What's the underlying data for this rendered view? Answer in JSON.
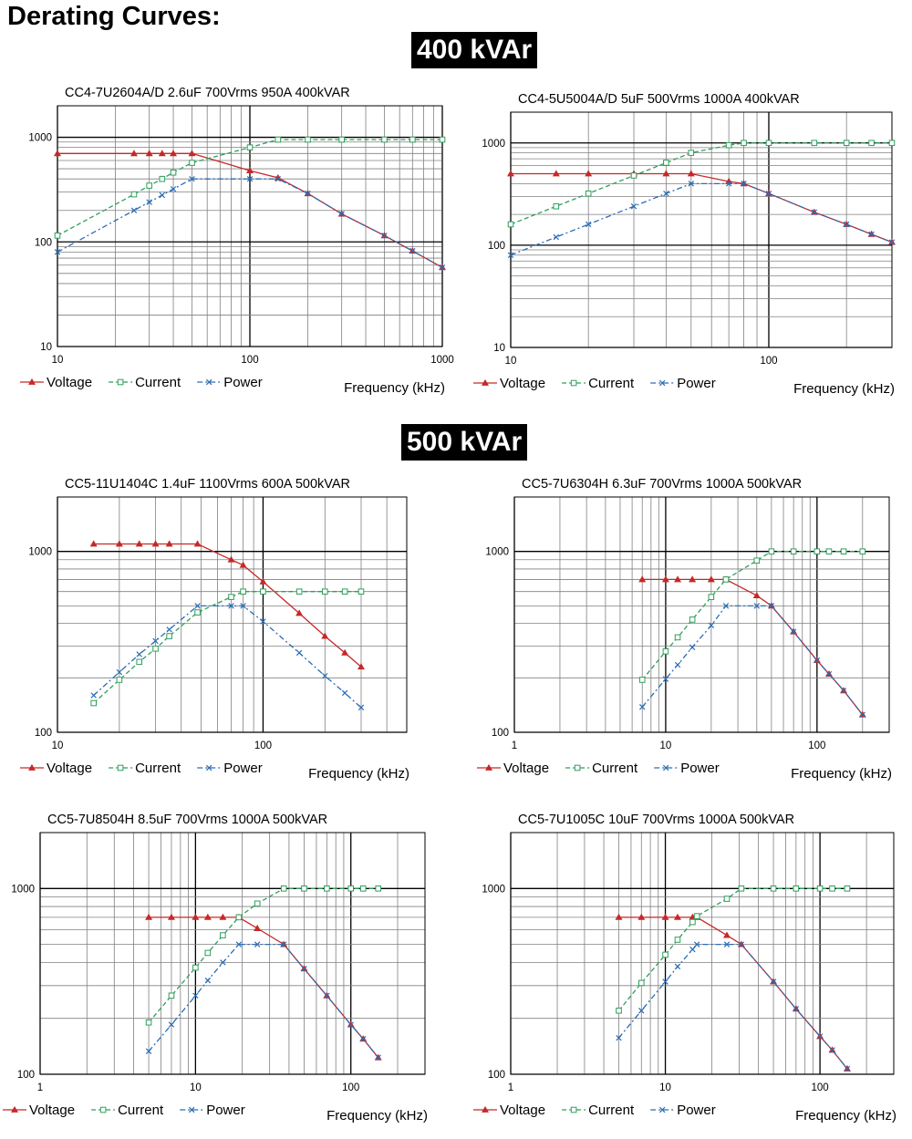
{
  "page": {
    "title": "Derating Curves:"
  },
  "sections": [
    {
      "title": "400 kVAr"
    },
    {
      "title": "500 kVAr"
    }
  ],
  "colors": {
    "voltage": "#c62828",
    "current": "#2e9e5b",
    "power": "#2a6db5",
    "grid_major": "#000000",
    "grid_minor": "#808080"
  },
  "legend": {
    "voltage": "Voltage",
    "current": "Current",
    "power": "Power"
  },
  "chart_data": [
    {
      "type": "line",
      "title": "CC4-7U2604A/D  2.6uF 700Vrms 950A 400kVAR",
      "xlabel": "Frequency (kHz)",
      "x_scale": "log",
      "y_scale": "log",
      "xlim": [
        10,
        1000
      ],
      "ylim": [
        10,
        2000
      ],
      "x_ticks": [
        10,
        100,
        1000
      ],
      "y_ticks": [
        10,
        100,
        1000
      ],
      "series": [
        {
          "name": "Voltage",
          "x": [
            10,
            25,
            30,
            35,
            40,
            50,
            100,
            140,
            200,
            300,
            500,
            700,
            1000
          ],
          "y": [
            700,
            700,
            700,
            700,
            700,
            700,
            480,
            410,
            290,
            185,
            115,
            82,
            57
          ]
        },
        {
          "name": "Current",
          "x": [
            10,
            25,
            30,
            35,
            40,
            50,
            100,
            140,
            200,
            300,
            500,
            700,
            1000
          ],
          "y": [
            115,
            285,
            345,
            400,
            460,
            570,
            800,
            950,
            950,
            950,
            950,
            950,
            950
          ]
        },
        {
          "name": "Power",
          "x": [
            10,
            25,
            30,
            35,
            40,
            50,
            100,
            140,
            200,
            300,
            500,
            700,
            1000
          ],
          "y": [
            80,
            200,
            240,
            280,
            320,
            400,
            400,
            400,
            290,
            185,
            115,
            82,
            57
          ]
        }
      ]
    },
    {
      "type": "line",
      "title": "CC4-5U5004A/D  5uF 500Vrms 1000A 400kVAR",
      "xlabel": "Frequency (kHz)",
      "x_scale": "log",
      "y_scale": "log",
      "xlim": [
        10,
        300
      ],
      "ylim": [
        10,
        2000
      ],
      "x_ticks": [
        10,
        100
      ],
      "y_ticks": [
        10,
        100,
        1000
      ],
      "series": [
        {
          "name": "Voltage",
          "x": [
            10,
            15,
            20,
            30,
            40,
            50,
            70,
            80,
            100,
            150,
            200,
            250,
            300
          ],
          "y": [
            500,
            500,
            500,
            500,
            500,
            500,
            420,
            400,
            320,
            210,
            160,
            128,
            107
          ]
        },
        {
          "name": "Current",
          "x": [
            10,
            15,
            20,
            30,
            40,
            50,
            70,
            80,
            100,
            150,
            200,
            250,
            300
          ],
          "y": [
            160,
            240,
            320,
            480,
            640,
            800,
            950,
            1000,
            1000,
            1000,
            1000,
            1000,
            1000
          ]
        },
        {
          "name": "Power",
          "x": [
            10,
            15,
            20,
            30,
            40,
            50,
            70,
            80,
            100,
            150,
            200,
            250,
            300
          ],
          "y": [
            80,
            120,
            160,
            240,
            320,
            400,
            400,
            400,
            320,
            210,
            160,
            128,
            107
          ]
        }
      ]
    },
    {
      "type": "line",
      "title": "CC5-11U1404C  1.4uF 1100Vrms 600A 500kVAR",
      "xlabel": "Frequency (kHz)",
      "x_scale": "log",
      "y_scale": "log",
      "xlim": [
        10,
        500
      ],
      "ylim": [
        100,
        2000
      ],
      "x_ticks": [
        10,
        100
      ],
      "y_ticks": [
        100,
        1000
      ],
      "series": [
        {
          "name": "Voltage",
          "x": [
            15,
            20,
            25,
            30,
            35,
            48,
            70,
            80,
            100,
            150,
            200,
            250,
            300
          ],
          "y": [
            1100,
            1100,
            1100,
            1100,
            1100,
            1100,
            900,
            840,
            680,
            455,
            340,
            275,
            230
          ]
        },
        {
          "name": "Current",
          "x": [
            15,
            20,
            25,
            30,
            35,
            48,
            70,
            80,
            100,
            150,
            200,
            250,
            300
          ],
          "y": [
            145,
            195,
            245,
            290,
            340,
            460,
            560,
            600,
            600,
            600,
            600,
            600,
            600
          ]
        },
        {
          "name": "Power",
          "x": [
            15,
            20,
            25,
            30,
            35,
            48,
            70,
            80,
            100,
            150,
            200,
            250,
            300
          ],
          "y": [
            160,
            215,
            270,
            320,
            370,
            500,
            500,
            500,
            410,
            275,
            205,
            165,
            137
          ]
        }
      ]
    },
    {
      "type": "line",
      "title": "CC5-7U6304H  6.3uF 700Vrms 1000A 500kVAR",
      "xlabel": "Frequency (kHz)",
      "x_scale": "log",
      "y_scale": "log",
      "xlim": [
        1,
        300
      ],
      "ylim": [
        100,
        2000
      ],
      "x_ticks": [
        1,
        10,
        100
      ],
      "y_ticks": [
        100,
        1000
      ],
      "series": [
        {
          "name": "Voltage",
          "x": [
            7,
            10,
            12,
            15,
            20,
            25,
            40,
            50,
            70,
            100,
            120,
            150,
            200
          ],
          "y": [
            700,
            700,
            700,
            700,
            700,
            700,
            570,
            500,
            360,
            250,
            210,
            170,
            125
          ]
        },
        {
          "name": "Current",
          "x": [
            7,
            10,
            12,
            15,
            20,
            25,
            40,
            50,
            70,
            100,
            120,
            150,
            200
          ],
          "y": [
            195,
            280,
            335,
            420,
            560,
            700,
            890,
            1000,
            1000,
            1000,
            1000,
            1000,
            1000
          ]
        },
        {
          "name": "Power",
          "x": [
            7,
            10,
            12,
            15,
            20,
            25,
            40,
            50,
            70,
            100,
            120,
            150,
            200
          ],
          "y": [
            138,
            197,
            236,
            295,
            390,
            500,
            500,
            500,
            360,
            250,
            210,
            170,
            125
          ]
        }
      ]
    },
    {
      "type": "line",
      "title": "CC5-7U8504H  8.5uF 700Vrms 1000A 500kVAR",
      "xlabel": "Frequency (kHz)",
      "x_scale": "log",
      "y_scale": "log",
      "xlim": [
        1,
        300
      ],
      "ylim": [
        100,
        2000
      ],
      "x_ticks": [
        1,
        10,
        100
      ],
      "y_ticks": [
        100,
        1000
      ],
      "series": [
        {
          "name": "Voltage",
          "x": [
            5,
            7,
            10,
            12,
            15,
            19,
            25,
            37,
            50,
            70,
            100,
            120,
            150
          ],
          "y": [
            700,
            700,
            700,
            700,
            700,
            700,
            610,
            500,
            370,
            265,
            185,
            155,
            123
          ]
        },
        {
          "name": "Current",
          "x": [
            5,
            7,
            10,
            12,
            15,
            19,
            25,
            37,
            50,
            70,
            100,
            120,
            150
          ],
          "y": [
            190,
            265,
            375,
            450,
            560,
            700,
            830,
            1000,
            1000,
            1000,
            1000,
            1000,
            1000
          ]
        },
        {
          "name": "Power",
          "x": [
            5,
            7,
            10,
            12,
            15,
            19,
            25,
            37,
            50,
            70,
            100,
            120,
            150
          ],
          "y": [
            133,
            185,
            265,
            320,
            400,
            500,
            500,
            500,
            370,
            265,
            185,
            155,
            123
          ]
        }
      ]
    },
    {
      "type": "line",
      "title": "CC5-7U1005C  10uF 700Vrms 1000A 500kVAR",
      "xlabel": "Frequency (kHz)",
      "x_scale": "log",
      "y_scale": "log",
      "xlim": [
        1,
        300
      ],
      "ylim": [
        100,
        2000
      ],
      "x_ticks": [
        1,
        10,
        100
      ],
      "y_ticks": [
        100,
        1000
      ],
      "series": [
        {
          "name": "Voltage",
          "x": [
            5,
            7,
            10,
            12,
            15,
            16,
            25,
            31,
            50,
            70,
            100,
            120,
            150
          ],
          "y": [
            700,
            700,
            700,
            700,
            700,
            700,
            560,
            500,
            315,
            225,
            160,
            135,
            107
          ]
        },
        {
          "name": "Current",
          "x": [
            5,
            7,
            10,
            12,
            15,
            16,
            25,
            31,
            50,
            70,
            100,
            120,
            150
          ],
          "y": [
            220,
            310,
            440,
            530,
            660,
            710,
            880,
            1000,
            1000,
            1000,
            1000,
            1000,
            1000
          ]
        },
        {
          "name": "Power",
          "x": [
            5,
            7,
            10,
            12,
            15,
            16,
            25,
            31,
            50,
            70,
            100,
            120,
            150
          ],
          "y": [
            157,
            220,
            315,
            380,
            470,
            500,
            500,
            500,
            315,
            225,
            160,
            135,
            107
          ]
        }
      ]
    }
  ]
}
